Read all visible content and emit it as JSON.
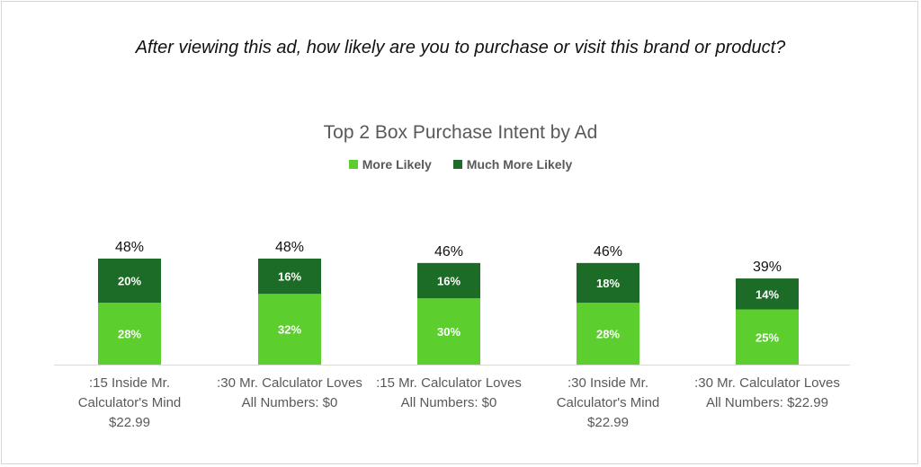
{
  "question": "After viewing this ad, how likely are you to purchase or visit this brand or product?",
  "chart_data": {
    "type": "bar",
    "stacked": true,
    "title": "Top 2 Box Purchase Intent by Ad",
    "categories": [
      ":15 Inside Mr. Calculator's Mind $22.99",
      ":30 Mr. Calculator Loves All Numbers: $0",
      ":15 Mr. Calculator Loves All Numbers: $0",
      ":30 Inside Mr. Calculator's Mind $22.99",
      ":30 Mr. Calculator Loves All Numbers: $22.99"
    ],
    "category_lines": [
      [
        ":15 Inside Mr.",
        "Calculator's Mind",
        "$22.99"
      ],
      [
        ":30 Mr. Calculator Loves",
        "All Numbers: $0"
      ],
      [
        ":15 Mr. Calculator Loves",
        "All Numbers: $0"
      ],
      [
        ":30 Inside Mr.",
        "Calculator's Mind",
        "$22.99"
      ],
      [
        ":30 Mr. Calculator Loves",
        "All Numbers: $22.99"
      ]
    ],
    "series": [
      {
        "name": "More Likely",
        "color": "#5ccf2f",
        "values": [
          28,
          32,
          30,
          28,
          25
        ],
        "labels": [
          "28%",
          "32%",
          "30%",
          "28%",
          "25%"
        ]
      },
      {
        "name": "Much More Likely",
        "color": "#1c6b26",
        "values": [
          20,
          16,
          16,
          18,
          14
        ],
        "labels": [
          "20%",
          "16%",
          "16%",
          "18%",
          "14%"
        ]
      }
    ],
    "totals": [
      "48%",
      "48%",
      "46%",
      "46%",
      "39%"
    ],
    "legend_position": "top",
    "grid": false
  }
}
